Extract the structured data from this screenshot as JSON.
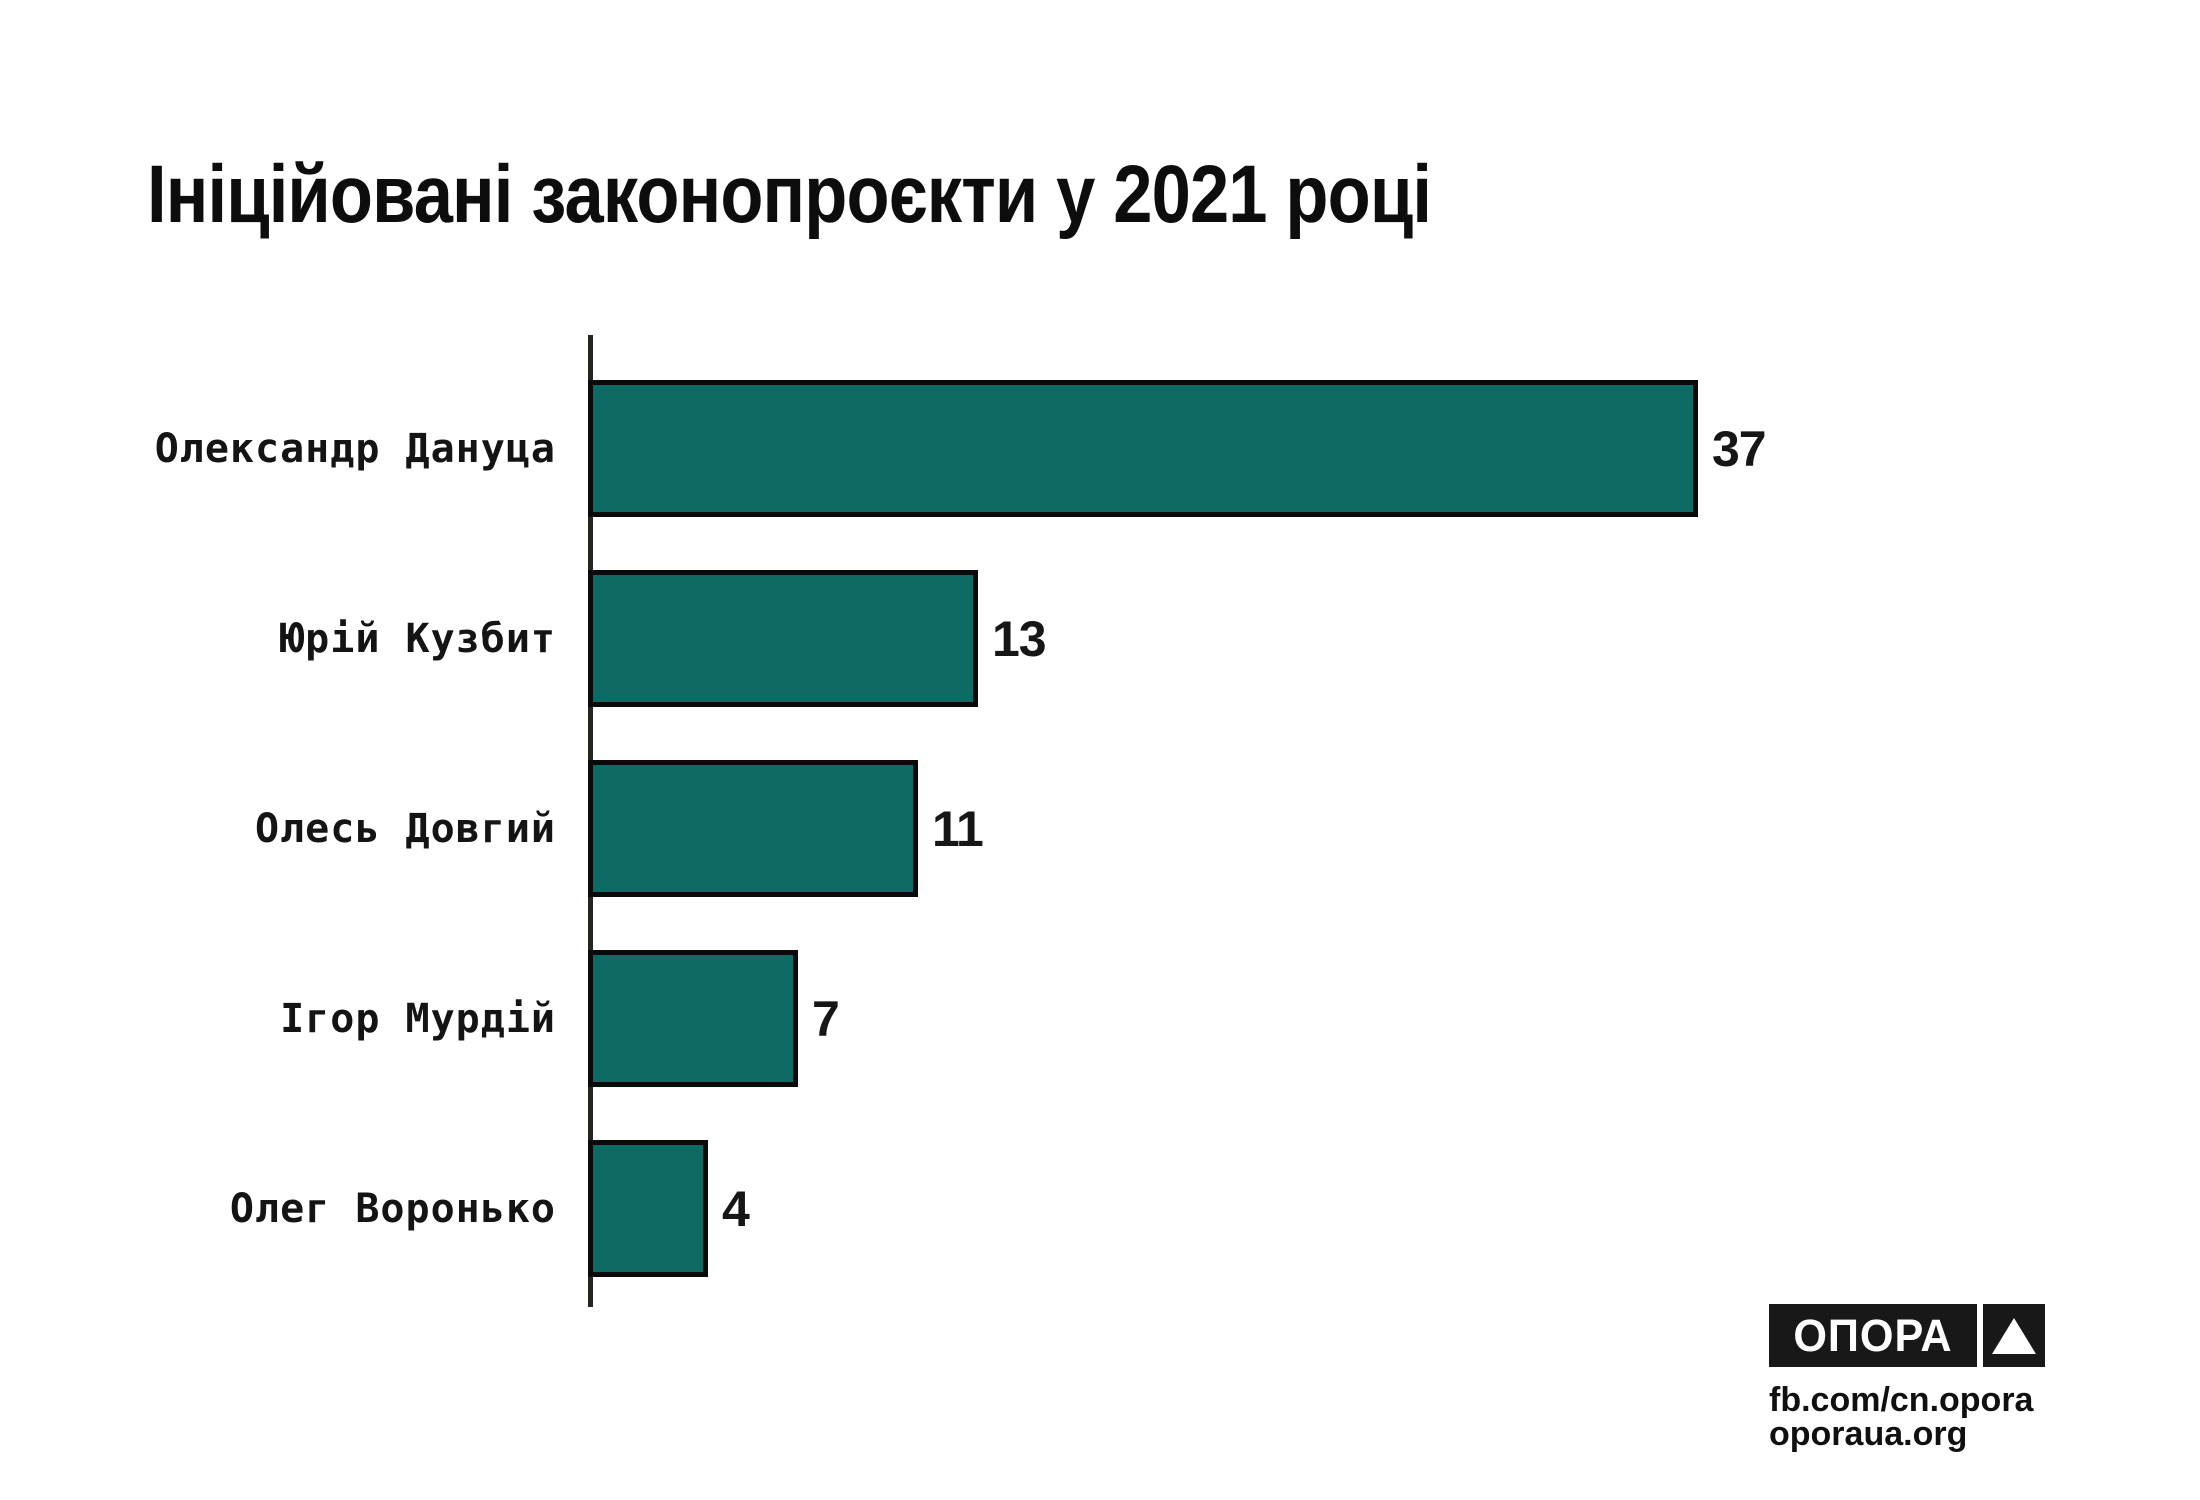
{
  "chart_data": {
    "type": "bar",
    "orientation": "horizontal",
    "title": "Ініційовані законопроєкти у 2021 році",
    "categories": [
      "Олександр Дануца",
      "Юрій Кузбит",
      "Олесь Довгий",
      "Ігор Мурдій",
      "Олег Воронько"
    ],
    "values": [
      37,
      13,
      11,
      7,
      4
    ],
    "value_labels": [
      "37",
      "13",
      "11",
      "7",
      "4"
    ],
    "xlim": [
      0,
      37
    ],
    "grid": false,
    "legend": "none",
    "bar_color": "#0e6a64",
    "bar_border_color": "#0a0a0a",
    "axis_color": "#22271f",
    "value_label_position": "right-of-bar",
    "category_label_position": "left-of-axis"
  },
  "footer": {
    "logo_text": "ОПОРА",
    "logo_bg": "#181818",
    "logo_text_color": "#ffffff",
    "triangle_icon": "white-up-triangle-in-black-square",
    "links": [
      "fb.com/cn.opora",
      "oporaua.org"
    ]
  }
}
